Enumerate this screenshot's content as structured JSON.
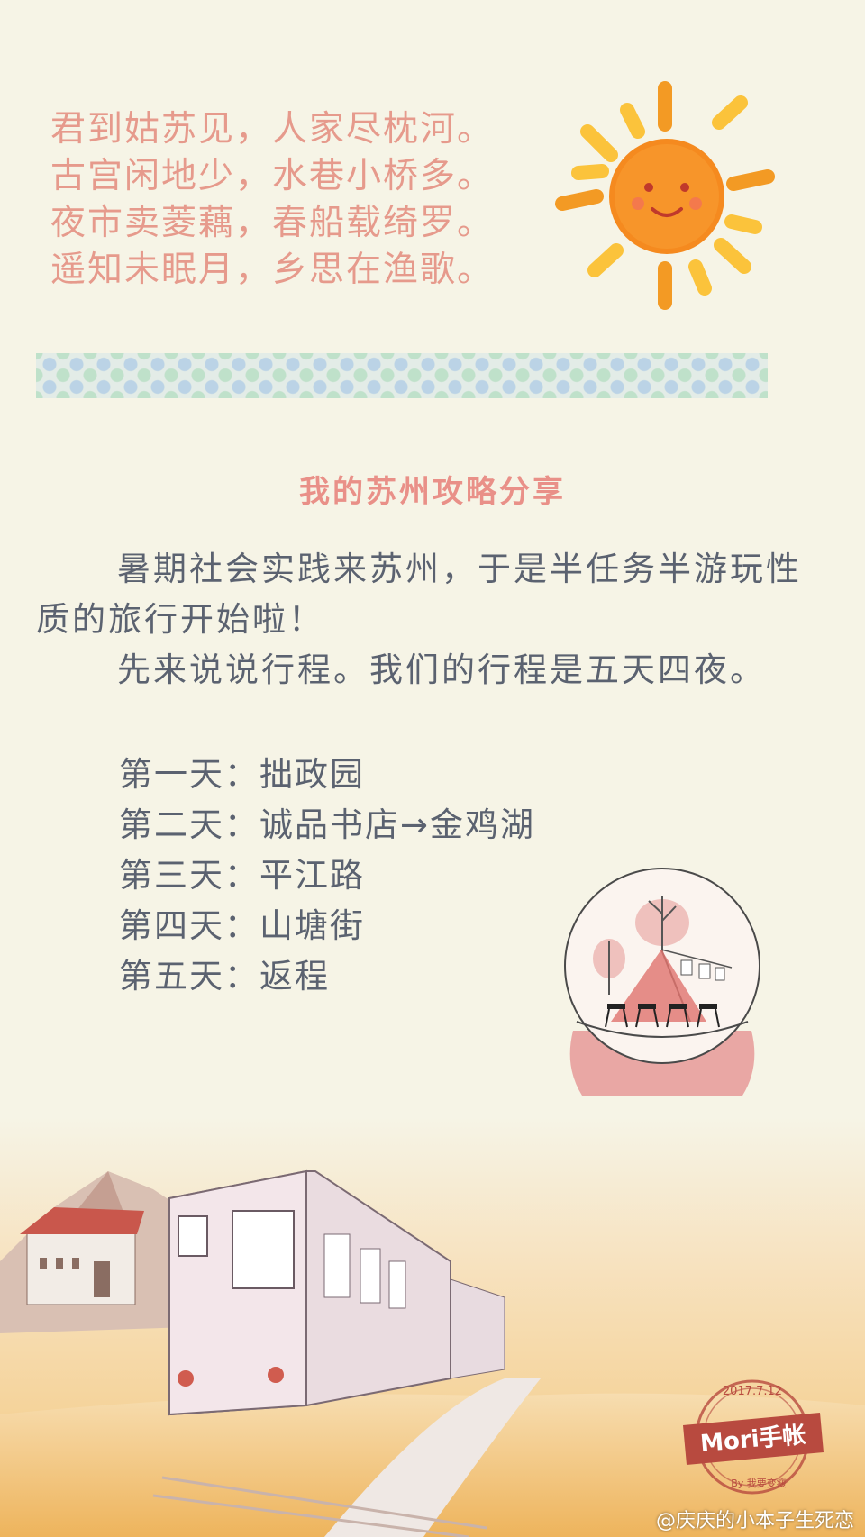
{
  "poem": {
    "lines": [
      "君到姑苏见，人家尽枕河。",
      "古宫闲地少，水巷小桥多。",
      "夜市卖菱藕，春船载绮罗。",
      "遥知未眠月，乡思在渔歌。"
    ]
  },
  "article": {
    "title": "我的苏州攻略分享",
    "paragraph1": "暑期社会实践来苏州，于是半任务半游玩性质的旅行开始啦！",
    "paragraph2": "先来说说行程。我们的行程是五天四夜。",
    "itinerary": [
      "第一天：拙政园",
      "第二天：诚品书店→金鸡湖",
      "第三天：平江路",
      "第四天：山塘街",
      "第五天：返程"
    ]
  },
  "stamp": {
    "date": "2017.7.12",
    "brand": "Mori手帐",
    "byline": "By 我要变瘦"
  },
  "watermark": "@庆庆的小本子生死恋",
  "colors": {
    "background": "#f6f4e6",
    "poem": "#e69a8c",
    "heading": "#e99088",
    "body": "#5b6270"
  }
}
